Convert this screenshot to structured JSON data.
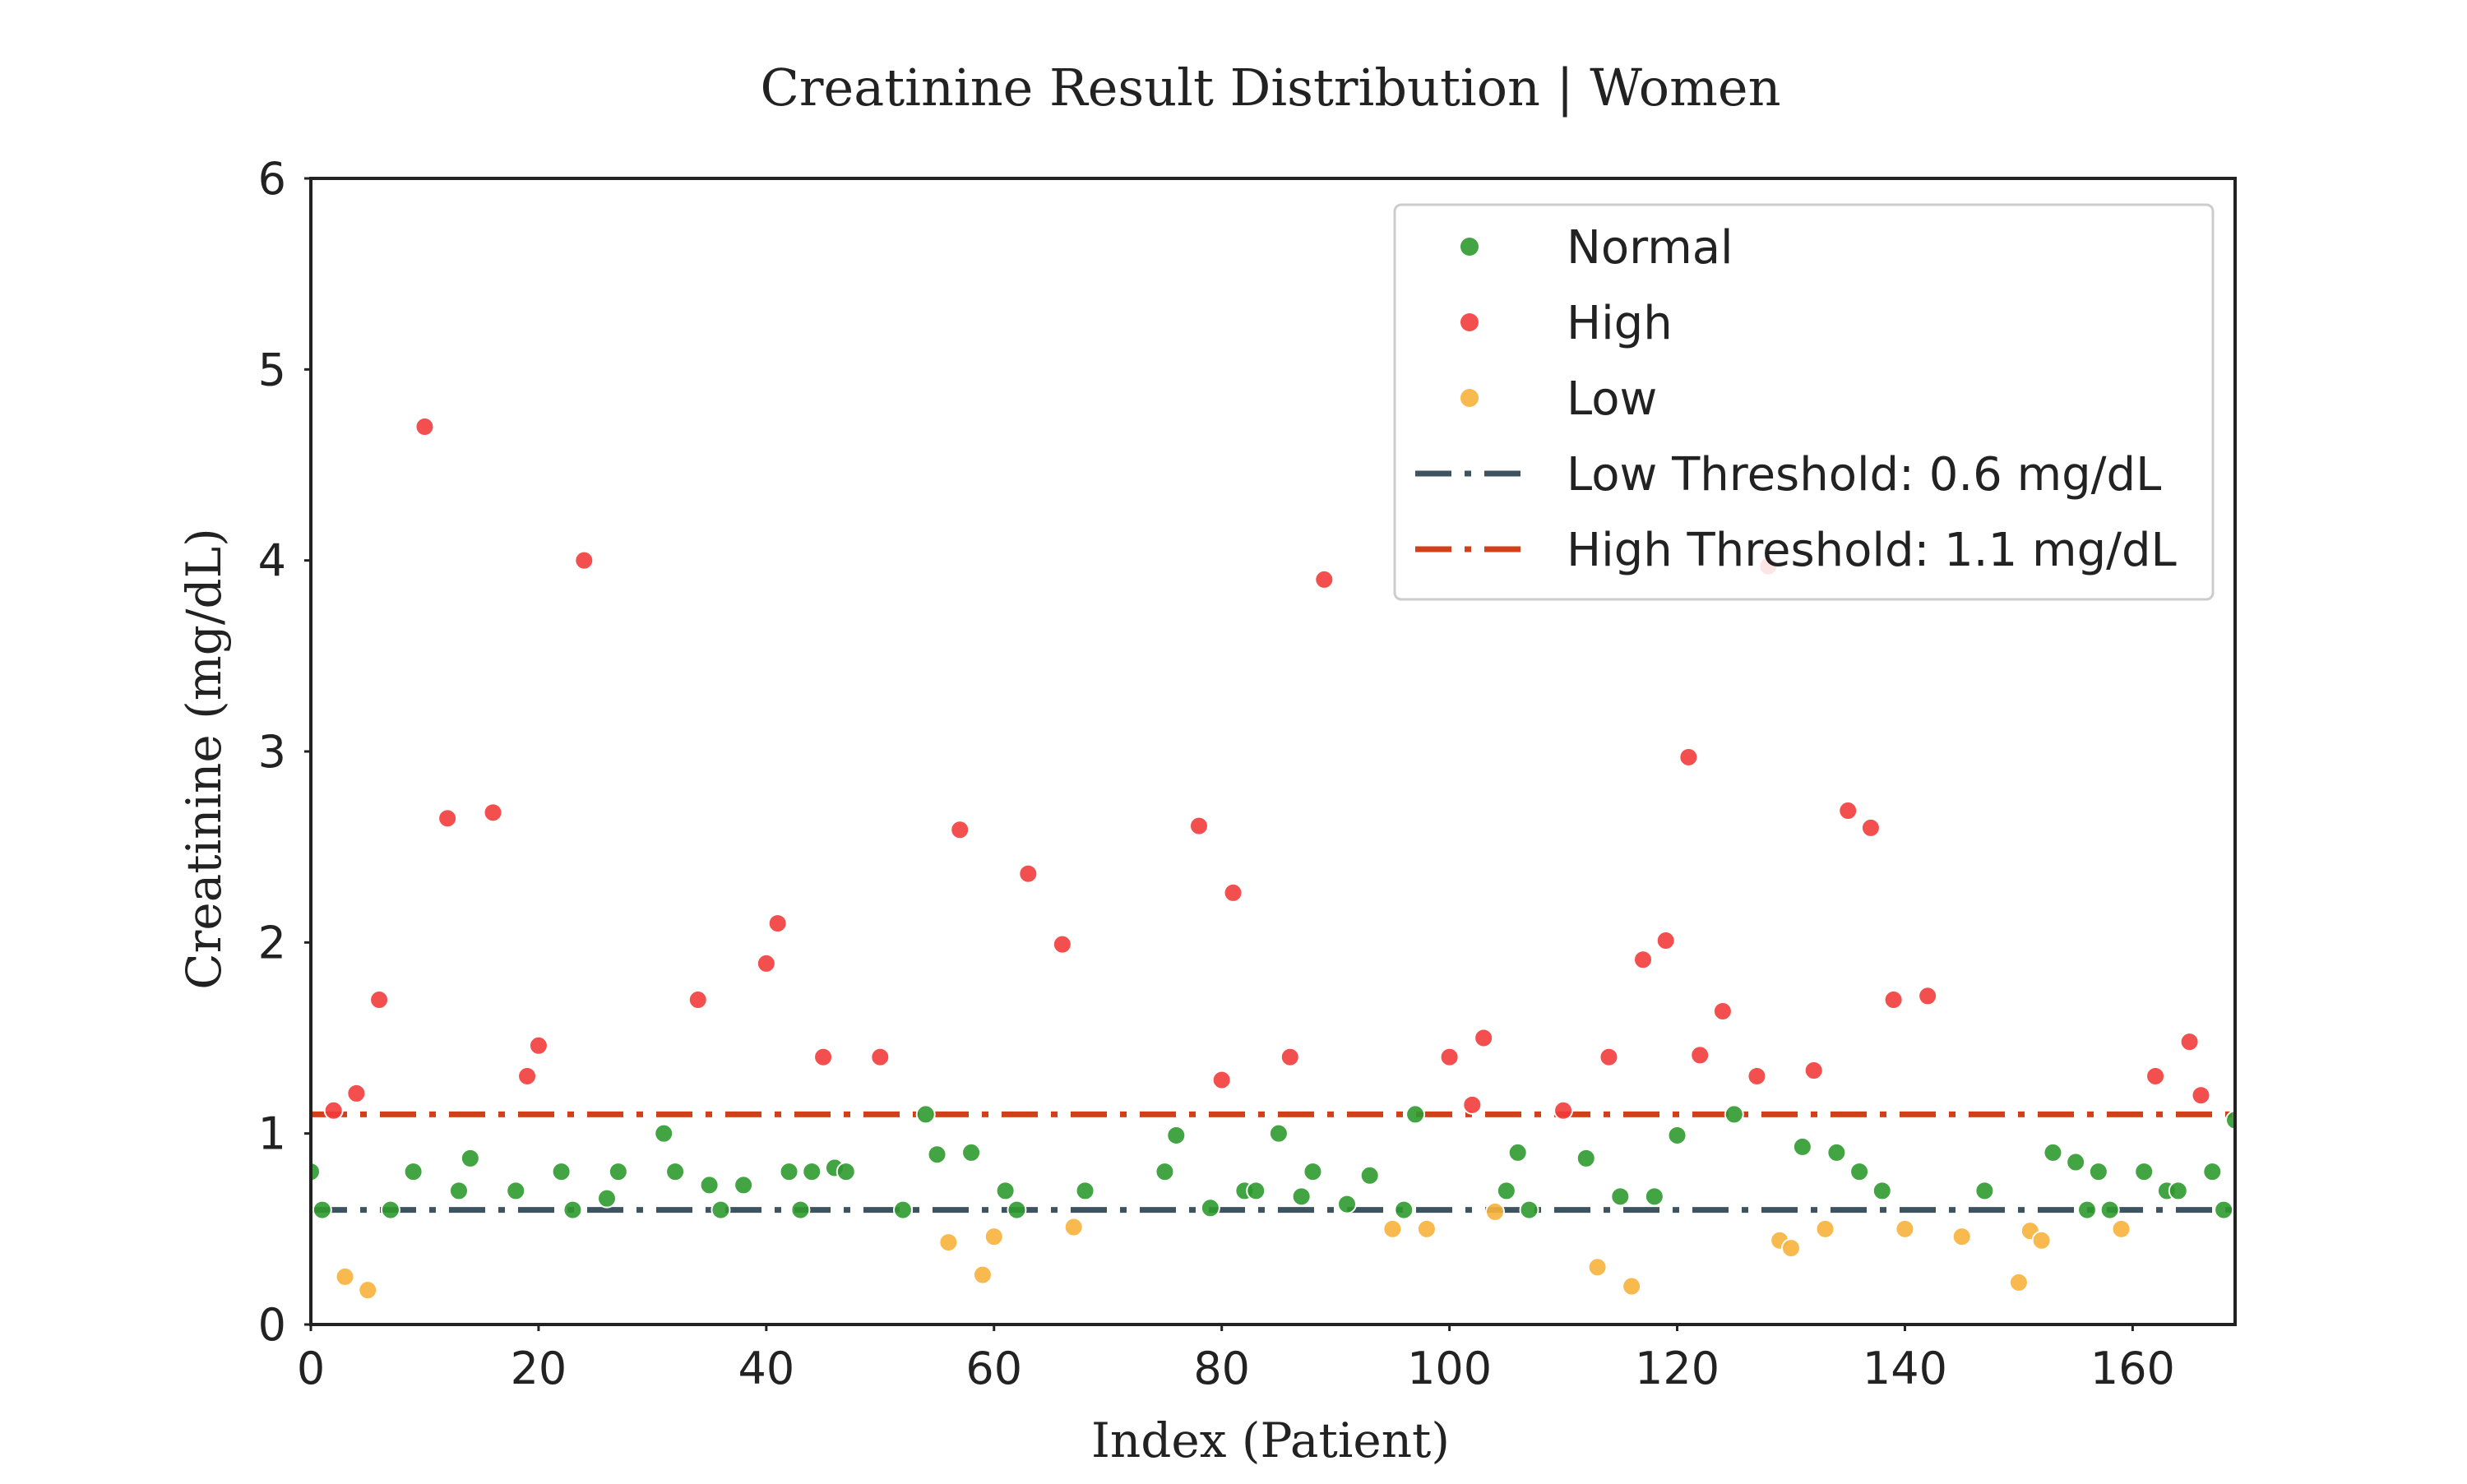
{
  "chart_data": {
    "type": "scatter",
    "title": "Creatinine Result Distribution | Women",
    "xlabel": "Index (Patient)",
    "ylabel": "Creatinine (mg/dL)",
    "xlim": [
      0,
      169
    ],
    "ylim": [
      0,
      6
    ],
    "xticks": [
      0,
      20,
      40,
      60,
      80,
      100,
      120,
      140,
      160
    ],
    "yticks": [
      0,
      1,
      2,
      3,
      4,
      5,
      6
    ],
    "grid": false,
    "legend_position": "upper right",
    "series": [
      {
        "name": "Normal",
        "color": "#2e9a2e",
        "marker": "circle",
        "points": [
          [
            0,
            0.8
          ],
          [
            1,
            0.6
          ],
          [
            7,
            0.6
          ],
          [
            9,
            0.8
          ],
          [
            13,
            0.7
          ],
          [
            14,
            0.87
          ],
          [
            18,
            0.7
          ],
          [
            22,
            0.8
          ],
          [
            23,
            0.6
          ],
          [
            26,
            0.66
          ],
          [
            27,
            0.8
          ],
          [
            31,
            1.0
          ],
          [
            32,
            0.8
          ],
          [
            35,
            0.73
          ],
          [
            36,
            0.6
          ],
          [
            38,
            0.73
          ],
          [
            42,
            0.8
          ],
          [
            43,
            0.6
          ],
          [
            44,
            0.8
          ],
          [
            46,
            0.82
          ],
          [
            47,
            0.8
          ],
          [
            52,
            0.6
          ],
          [
            54,
            1.1
          ],
          [
            55,
            0.89
          ],
          [
            58,
            0.9
          ],
          [
            61,
            0.7
          ],
          [
            62,
            0.6
          ],
          [
            68,
            0.7
          ],
          [
            75,
            0.8
          ],
          [
            76,
            0.99
          ],
          [
            79,
            0.61
          ],
          [
            82,
            0.7
          ],
          [
            83,
            0.7
          ],
          [
            85,
            1.0
          ],
          [
            87,
            0.67
          ],
          [
            88,
            0.8
          ],
          [
            91,
            0.63
          ],
          [
            93,
            0.78
          ],
          [
            96,
            0.6
          ],
          [
            97,
            1.1
          ],
          [
            105,
            0.7
          ],
          [
            106,
            0.9
          ],
          [
            107,
            0.6
          ],
          [
            112,
            0.87
          ],
          [
            115,
            0.67
          ],
          [
            118,
            0.67
          ],
          [
            120,
            0.99
          ],
          [
            125,
            1.1
          ],
          [
            131,
            0.93
          ],
          [
            134,
            0.9
          ],
          [
            136,
            0.8
          ],
          [
            138,
            0.7
          ],
          [
            147,
            0.7
          ],
          [
            153,
            0.9
          ],
          [
            155,
            0.85
          ],
          [
            156,
            0.6
          ],
          [
            157,
            0.8
          ],
          [
            158,
            0.6
          ],
          [
            161,
            0.8
          ],
          [
            163,
            0.7
          ],
          [
            164,
            0.7
          ],
          [
            167,
            0.8
          ],
          [
            168,
            0.6
          ],
          [
            169,
            1.07
          ]
        ]
      },
      {
        "name": "High",
        "color": "#f23c3c",
        "marker": "circle",
        "points": [
          [
            2,
            1.12
          ],
          [
            4,
            1.21
          ],
          [
            6,
            1.7
          ],
          [
            10,
            4.7
          ],
          [
            12,
            2.65
          ],
          [
            16,
            2.68
          ],
          [
            19,
            1.3
          ],
          [
            20,
            1.46
          ],
          [
            24,
            4.0
          ],
          [
            34,
            1.7
          ],
          [
            40,
            1.89
          ],
          [
            41,
            2.1
          ],
          [
            45,
            1.4
          ],
          [
            50,
            1.4
          ],
          [
            57,
            2.59
          ],
          [
            63,
            2.36
          ],
          [
            66,
            1.99
          ],
          [
            78,
            2.61
          ],
          [
            80,
            1.28
          ],
          [
            81,
            2.26
          ],
          [
            86,
            1.4
          ],
          [
            89,
            3.9
          ],
          [
            100,
            1.4
          ],
          [
            102,
            1.15
          ],
          [
            103,
            1.5
          ],
          [
            110,
            1.12
          ],
          [
            114,
            1.4
          ],
          [
            117,
            1.91
          ],
          [
            119,
            2.01
          ],
          [
            121,
            2.97
          ],
          [
            122,
            1.41
          ],
          [
            124,
            1.64
          ],
          [
            127,
            1.3
          ],
          [
            128,
            3.97
          ],
          [
            132,
            1.33
          ],
          [
            135,
            2.69
          ],
          [
            137,
            2.6
          ],
          [
            139,
            1.7
          ],
          [
            142,
            1.72
          ],
          [
            162,
            1.3
          ],
          [
            165,
            1.48
          ],
          [
            166,
            1.2
          ]
        ]
      },
      {
        "name": "Low",
        "color": "#f7b23b",
        "marker": "circle",
        "points": [
          [
            3,
            0.25
          ],
          [
            5,
            0.18
          ],
          [
            56,
            0.43
          ],
          [
            59,
            0.26
          ],
          [
            60,
            0.46
          ],
          [
            67,
            0.51
          ],
          [
            95,
            0.5
          ],
          [
            98,
            0.5
          ],
          [
            104,
            0.59
          ],
          [
            113,
            0.3
          ],
          [
            116,
            0.2
          ],
          [
            129,
            0.44
          ],
          [
            130,
            0.4
          ],
          [
            133,
            0.5
          ],
          [
            140,
            0.5
          ],
          [
            145,
            0.46
          ],
          [
            150,
            0.22
          ],
          [
            151,
            0.49
          ],
          [
            152,
            0.44
          ],
          [
            159,
            0.5
          ]
        ]
      }
    ],
    "hlines": [
      {
        "name": "Low Threshold: 0.6 mg/dL",
        "y": 0.6,
        "color": "#3d5360",
        "style": "dashdot"
      },
      {
        "name": "High Threshold: 1.1 mg/dL",
        "y": 1.1,
        "color": "#d2401a",
        "style": "dashdot"
      }
    ]
  }
}
